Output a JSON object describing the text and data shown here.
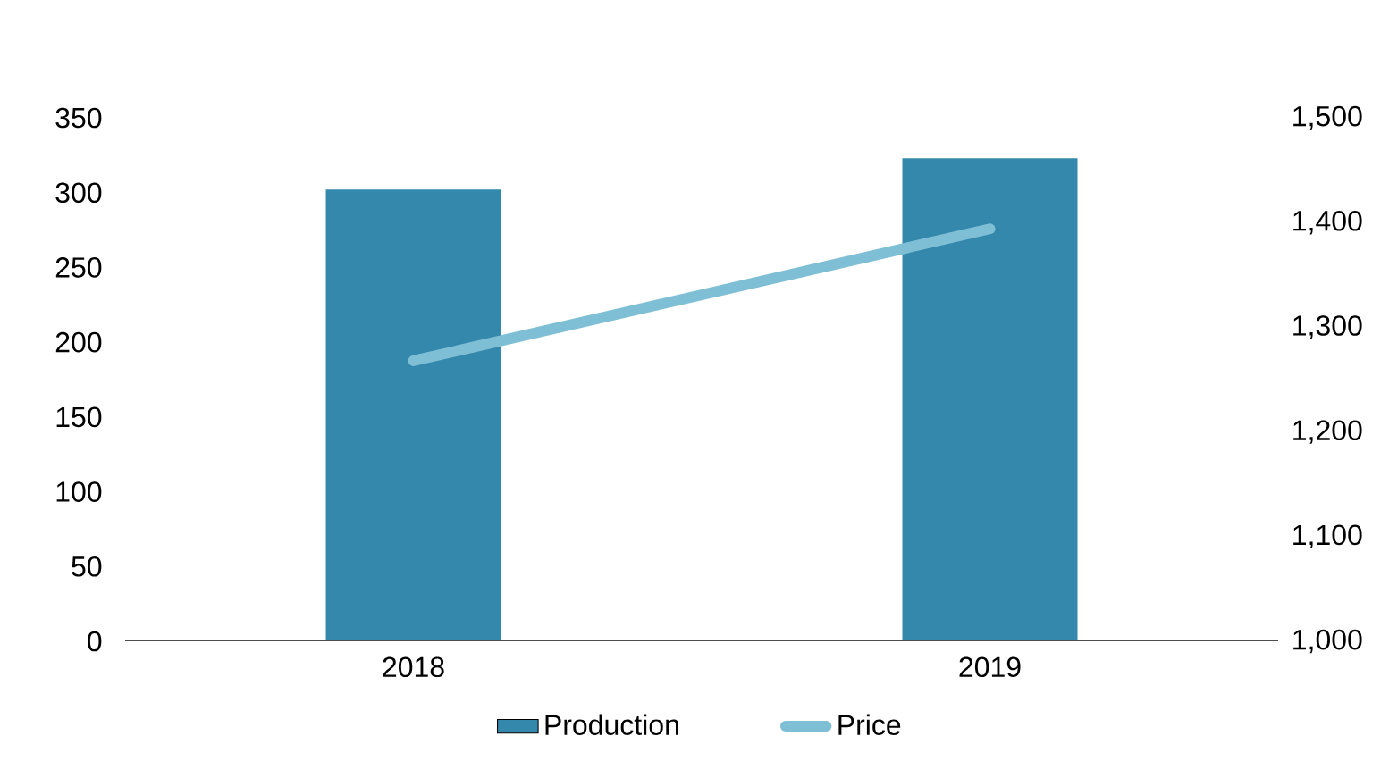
{
  "chart_data": {
    "type": "bar",
    "categories": [
      "2018",
      "2019"
    ],
    "series": [
      {
        "name": "Production",
        "color": "#3488ab",
        "values": [
          302,
          323
        ]
      },
      {
        "name": "Price",
        "type": "line",
        "axis": "y2",
        "color": "#7fbfd6",
        "values": [
          1268,
          1394
        ]
      }
    ],
    "ylim": [
      0,
      350
    ],
    "yticks": [
      0,
      50,
      100,
      150,
      200,
      250,
      300,
      350
    ],
    "y2lim": [
      1000,
      1500
    ],
    "y2ticks": [
      {
        "value": 1000,
        "label": "1,000"
      },
      {
        "value": 1100,
        "label": "1,100"
      },
      {
        "value": 1200,
        "label": "1,200"
      },
      {
        "value": 1300,
        "label": "1,300"
      },
      {
        "value": 1400,
        "label": "1,400"
      },
      {
        "value": 1500,
        "label": "1,500"
      }
    ],
    "grid": false,
    "legend": "bottom"
  }
}
